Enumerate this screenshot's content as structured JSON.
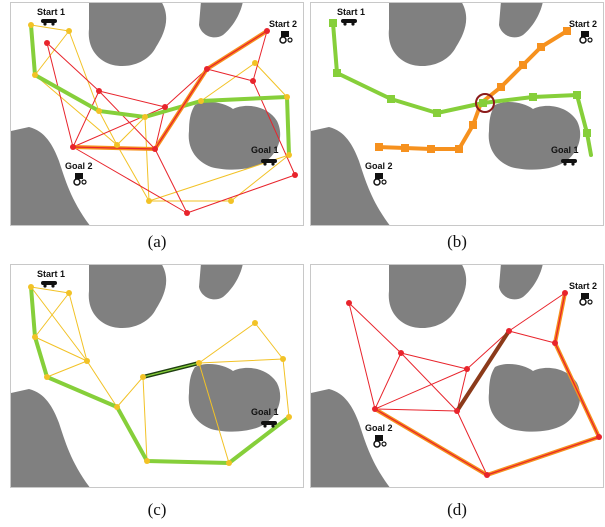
{
  "panels": [
    {
      "id": "a",
      "caption": "(a)",
      "start_label": "Start 1",
      "start2_label": "Start 2",
      "goal_label": "Goal 1",
      "goal2_label": "Goal 2"
    },
    {
      "id": "b",
      "caption": "(b)",
      "start_label": "Start 1",
      "start2_label": "Start 2",
      "goal_label": "Goal 1",
      "goal2_label": "Goal 2"
    },
    {
      "id": "c",
      "caption": "(c)",
      "start_label": "Start 1",
      "goal_label": "Goal 1"
    },
    {
      "id": "d",
      "caption": "(d)",
      "start2_label": "Start 2",
      "goal2_label": "Goal 2"
    }
  ],
  "colors": {
    "obstacle": "#808080",
    "red_graph": "#e8242c",
    "yellow_graph": "#f2c226",
    "green_path": "#86cf3a",
    "orange_path": "#f6911e",
    "conflict_circle": "#8b1a1a",
    "shared_edge": "#1f3f10",
    "brown_edge": "#8b3a1a"
  },
  "icons": {
    "car": "car-icon",
    "tractor": "tractor-icon"
  }
}
